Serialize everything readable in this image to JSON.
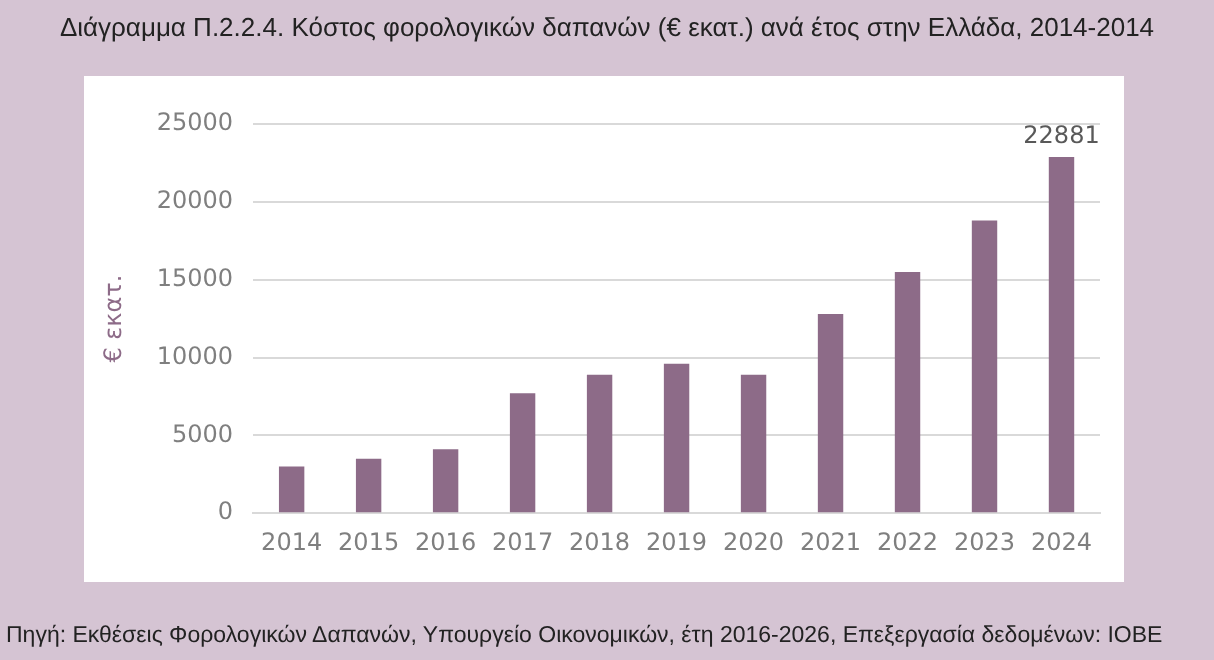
{
  "chart_data": {
    "type": "bar",
    "title": "Διάγραμμα Π.2.2.4. Κόστος φορολογικών δαπανών (€ εκατ.) ανά έτος στην Ελλάδα, 2014-2014",
    "ylabel": "€ εκατ.",
    "categories": [
      "2014",
      "2015",
      "2016",
      "2017",
      "2018",
      "2019",
      "2020",
      "2021",
      "2022",
      "2023",
      "2024"
    ],
    "values": [
      3000,
      3500,
      4100,
      7700,
      8900,
      9600,
      8900,
      12800,
      15500,
      18800,
      22881
    ],
    "value_labels": [
      null,
      null,
      null,
      null,
      null,
      null,
      null,
      null,
      null,
      null,
      "22881"
    ],
    "color": "#8d6b88",
    "ylim": [
      0,
      25000
    ],
    "yticks": [
      0,
      5000,
      10000,
      15000,
      20000,
      25000
    ],
    "grid": "y",
    "annotations": [
      "Πηγή: Εκθέσεις Φορολογικών Δαπανών, Υπουργείο Οικονομικών, έτη 2016-2026, Επεξεργασία δεδομένων: ΙΟΒΕ"
    ]
  }
}
